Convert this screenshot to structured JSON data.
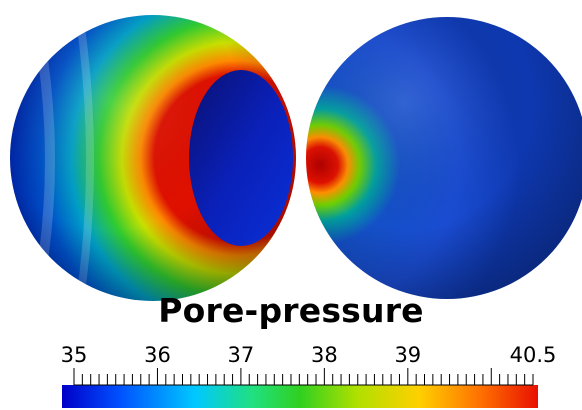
{
  "title": "Pore-pressure",
  "colorbar": {
    "min": 35,
    "max": 40.5,
    "labels": [
      {
        "text": "35",
        "value": 35
      },
      {
        "text": "36",
        "value": 36
      },
      {
        "text": "37",
        "value": 37
      },
      {
        "text": "38",
        "value": 38
      },
      {
        "text": "39",
        "value": 39
      },
      {
        "text": "40.5",
        "value": 40.5
      }
    ],
    "colors": [
      "#0000c8",
      "#0050ff",
      "#00c8ff",
      "#20e080",
      "#30d020",
      "#b0e000",
      "#ffd000",
      "#ff7000",
      "#e81000"
    ]
  }
}
